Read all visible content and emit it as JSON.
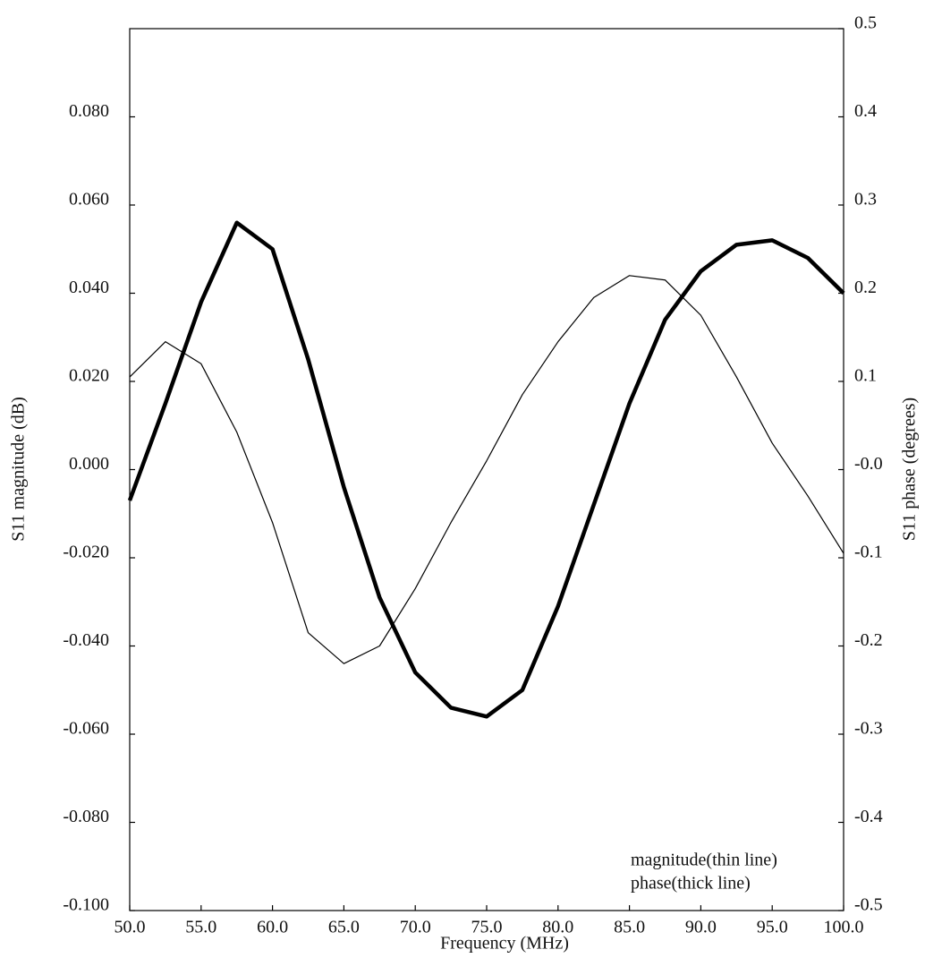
{
  "chart_data": {
    "type": "line",
    "xlabel": "Frequency (MHz)",
    "ylabel": "S11 magnitude (dB)",
    "y2label": "S11 phase (degrees)",
    "annotations": [
      "magnitude(thin line)",
      "phase(thick line)"
    ],
    "x": [
      50,
      52.5,
      55,
      57.5,
      60,
      62.5,
      65,
      67.5,
      70,
      72.5,
      75,
      77.5,
      80,
      82.5,
      85,
      87.5,
      90,
      92.5,
      95,
      97.5,
      100
    ],
    "series": [
      {
        "name": "magnitude",
        "color": "#000000",
        "axis": "y",
        "values": [
          0.021,
          0.029,
          0.024,
          0.0085,
          -0.012,
          -0.037,
          -0.044,
          -0.04,
          -0.027,
          -0.012,
          0.002,
          0.017,
          0.029,
          0.039,
          0.044,
          0.043,
          0.035,
          0.021,
          0.006,
          -0.006,
          -0.019
        ]
      },
      {
        "name": "phase",
        "color": "#000000",
        "axis": "y2",
        "values": [
          -0.035,
          0.075,
          0.19,
          0.28,
          0.25,
          0.125,
          -0.02,
          -0.145,
          -0.23,
          -0.27,
          -0.28,
          -0.25,
          -0.155,
          -0.04,
          0.075,
          0.17,
          0.225,
          0.255,
          0.26,
          0.24,
          0.2
        ]
      }
    ],
    "xlim": [
      50,
      100
    ],
    "xticks": [
      {
        "value": 50,
        "label": "50.0"
      },
      {
        "value": 55,
        "label": "55.0"
      },
      {
        "value": 60,
        "label": "60.0"
      },
      {
        "value": 65,
        "label": "65.0"
      },
      {
        "value": 70,
        "label": "70.0"
      },
      {
        "value": 75,
        "label": "75.0"
      },
      {
        "value": 80,
        "label": "80.0"
      },
      {
        "value": 85,
        "label": "85.0"
      },
      {
        "value": 90,
        "label": "90.0"
      },
      {
        "value": 95,
        "label": "95.0"
      },
      {
        "value": 100,
        "label": "100.0"
      }
    ],
    "ylim": [
      -0.1,
      0.1
    ],
    "yticks": [
      {
        "value": -0.1,
        "label": "-0.100"
      },
      {
        "value": -0.08,
        "label": "-0.080"
      },
      {
        "value": -0.06,
        "label": "-0.060"
      },
      {
        "value": -0.04,
        "label": "-0.040"
      },
      {
        "value": -0.02,
        "label": "-0.020"
      },
      {
        "value": 0,
        "label": "0.000"
      },
      {
        "value": 0.02,
        "label": "0.020"
      },
      {
        "value": 0.04,
        "label": "0.040"
      },
      {
        "value": 0.06,
        "label": "0.060"
      },
      {
        "value": 0.08,
        "label": "0.080"
      }
    ],
    "y2lim": [
      -0.5,
      0.5
    ],
    "y2ticks": [
      -0.5,
      -0.4,
      -0.3,
      -0.2,
      -0.1,
      {
        "value": 0,
        "label": "-0.0"
      },
      0.1,
      0.2,
      0.3,
      0.4,
      0.5
    ],
    "grid": false
  }
}
